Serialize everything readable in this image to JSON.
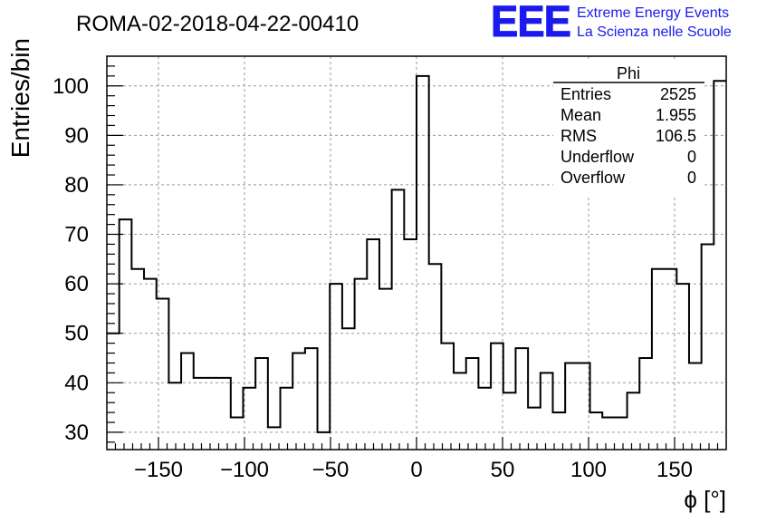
{
  "chart_data": {
    "type": "histogram",
    "title": "ROMA-02-2018-04-22-00410",
    "xlabel": "ϕ [°]",
    "ylabel": "Entries/bin",
    "xlim": [
      -180,
      180
    ],
    "ylim": [
      26.5,
      106
    ],
    "xticks": [
      -150,
      -100,
      -50,
      0,
      50,
      100,
      150
    ],
    "yticks": [
      30,
      40,
      50,
      60,
      70,
      80,
      90,
      100
    ],
    "grid": true,
    "bin_width": 7.2,
    "bin_edges_start": -180,
    "values": [
      50,
      73,
      63,
      61,
      57,
      40,
      46,
      41,
      41,
      41,
      33,
      39,
      45,
      31,
      39,
      46,
      47,
      30,
      60,
      51,
      61,
      69,
      59,
      79,
      69,
      102,
      64,
      48,
      42,
      45,
      39,
      48,
      38,
      47,
      35,
      42,
      34,
      44,
      44,
      34,
      33,
      33,
      38,
      45,
      63,
      63,
      60,
      44,
      68,
      101
    ],
    "stats_box": {
      "title": "Phi",
      "rows": [
        {
          "label": "Entries",
          "value": "2525"
        },
        {
          "label": "Mean",
          "value": "1.955"
        },
        {
          "label": "RMS",
          "value": "106.5"
        },
        {
          "label": "Underflow",
          "value": "0"
        },
        {
          "label": "Overflow",
          "value": "0"
        }
      ],
      "position": "top-right"
    }
  },
  "logo": {
    "text": "EEE",
    "line1": "Extreme Energy Events",
    "line2": "La Scienza nelle Scuole",
    "color": "#1a1aee"
  }
}
